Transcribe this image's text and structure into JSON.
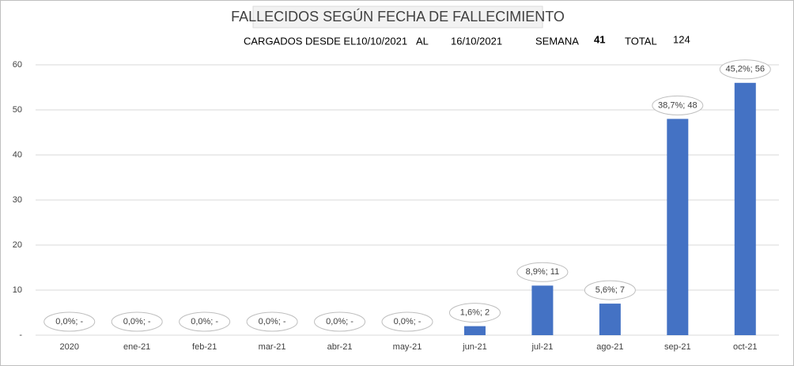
{
  "chart_data": {
    "type": "bar",
    "title": "FALLECIDOS SEGÚN FECHA DE FALLECIMIENTO",
    "loaded_from_label": "CARGADOS DESDE EL",
    "loaded_from": "10/10/2021",
    "to_label": "AL",
    "loaded_to": "16/10/2021",
    "week_label": "SEMANA",
    "week": 41,
    "total_label": "TOTAL",
    "total": 124,
    "categories": [
      "2020",
      "ene-21",
      "feb-21",
      "mar-21",
      "abr-21",
      "may-21",
      "jun-21",
      "jul-21",
      "ago-21",
      "sep-21",
      "oct-21"
    ],
    "values": [
      0,
      0,
      0,
      0,
      0,
      0,
      2,
      11,
      7,
      48,
      56
    ],
    "value_labels": [
      "0,0%; -",
      "0,0%; -",
      "0,0%; -",
      "0,0%; -",
      "0,0%; -",
      "0,0%; -",
      "1,6%; 2",
      "8,9%; 11",
      "5,6%; 7",
      "38,7%; 48",
      "45,2%; 56"
    ],
    "color": "#4472c4",
    "ylim": [
      0,
      60
    ],
    "yticks": [
      {
        "value": 0,
        "label": "-"
      },
      10,
      20,
      30,
      40,
      50,
      60
    ],
    "grid": true
  }
}
